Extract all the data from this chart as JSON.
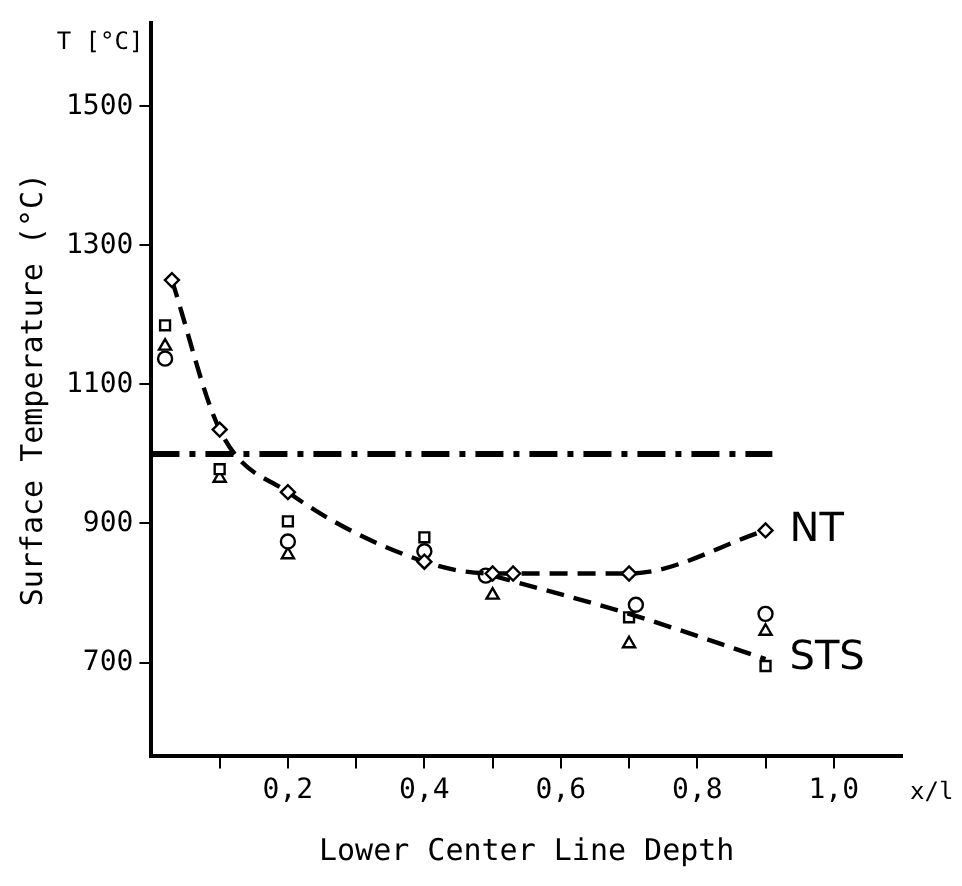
{
  "chart_data": {
    "type": "line",
    "xlabel": "Lower Center Line Depth",
    "ylabel": "Surface Temperature (°C)",
    "annotations": [
      "T [°C]",
      "x/l"
    ],
    "xlim": [
      0,
      1.1
    ],
    "ylim": [
      565,
      1620
    ],
    "xticks": [
      {
        "value": 0.1,
        "label": null
      },
      {
        "value": 0.2,
        "label": "0,2"
      },
      {
        "value": 0.3,
        "label": null
      },
      {
        "value": 0.4,
        "label": "0,4"
      },
      {
        "value": 0.5,
        "label": null
      },
      {
        "value": 0.6,
        "label": "0,6"
      },
      {
        "value": 0.7,
        "label": null
      },
      {
        "value": 0.8,
        "label": "0,8"
      },
      {
        "value": 0.9,
        "label": null
      },
      {
        "value": 1.0,
        "label": "1,0"
      }
    ],
    "yticks": [
      700,
      900,
      1100,
      1300,
      1500
    ],
    "grid": false,
    "legend": false,
    "ref_lines": [
      {
        "axis": "y",
        "value": 1000,
        "line_style": "dashdot",
        "color": "#000000"
      }
    ],
    "series": [
      {
        "name": "NT",
        "color": "#000000",
        "marker": "diamond",
        "line_style": "dashed",
        "x": [
          0.03,
          0.1,
          0.2,
          0.4,
          0.5,
          0.53,
          0.7,
          0.9
        ],
        "values": [
          1250,
          1035,
          945,
          845,
          828,
          828,
          828,
          890
        ]
      },
      {
        "name": "STS",
        "color": "#000000",
        "marker": "none",
        "line_style": "dashed",
        "x": [
          0.5,
          0.7,
          0.9
        ],
        "values": [
          825,
          770,
          705
        ]
      },
      {
        "type": "scatter",
        "color": "#000000",
        "marker": "circle",
        "x": [
          0.02,
          0.2,
          0.4,
          0.49,
          0.71,
          0.9
        ],
        "values": [
          1137,
          874,
          860,
          825,
          783,
          770
        ]
      },
      {
        "type": "scatter",
        "color": "#000000",
        "marker": "square",
        "x": [
          0.02,
          0.1,
          0.2,
          0.4,
          0.7,
          0.9
        ],
        "values": [
          1185,
          978,
          903,
          880,
          765,
          695
        ]
      },
      {
        "type": "scatter",
        "color": "#000000",
        "marker": "triangle",
        "x": [
          0.02,
          0.1,
          0.2,
          0.5,
          0.7,
          0.9
        ],
        "values": [
          1155,
          965,
          855,
          797,
          727,
          745
        ]
      }
    ]
  }
}
